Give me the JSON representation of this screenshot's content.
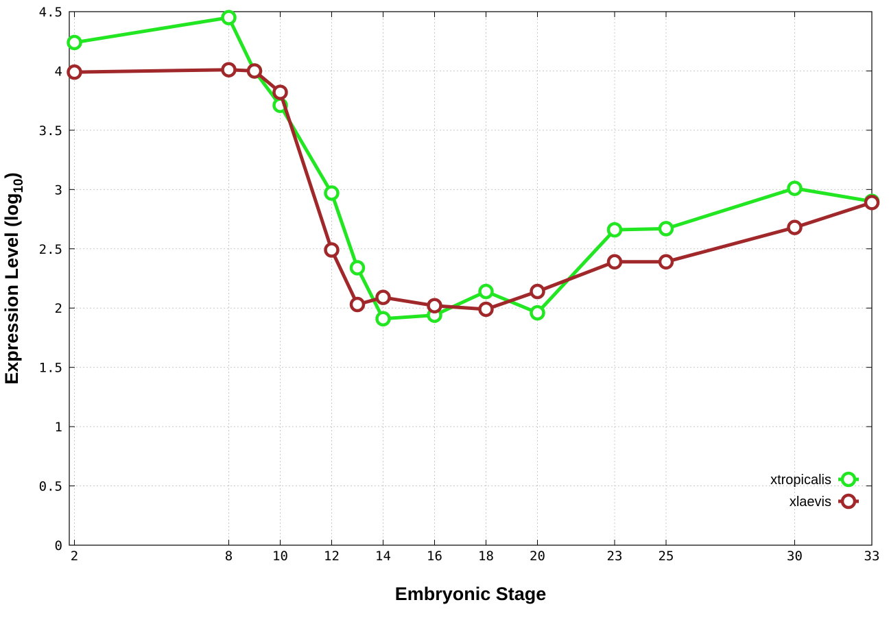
{
  "chart_data": {
    "type": "line",
    "title": "",
    "xlabel": "Embryonic Stage",
    "ylabel_main": "Expression Level (log",
    "ylabel_sub": "10",
    "ylabel_close": ")",
    "x": [
      2,
      8,
      9,
      10,
      12,
      13,
      14,
      16,
      18,
      20,
      23,
      25,
      30,
      33
    ],
    "x_tick_values": [
      2,
      8,
      10,
      12,
      14,
      16,
      18,
      20,
      23,
      25,
      30,
      33
    ],
    "x_tick_labels": [
      "2",
      "8",
      "10",
      "12",
      "14",
      "16",
      "18",
      "20",
      "23",
      "25",
      "30",
      "33"
    ],
    "xlim": [
      1.8,
      33
    ],
    "y_tick_values": [
      0,
      0.5,
      1,
      1.5,
      2,
      2.5,
      3,
      3.5,
      4,
      4.5
    ],
    "y_tick_labels": [
      "0",
      "0.5",
      "1",
      "1.5",
      "2",
      "2.5",
      "3",
      "3.5",
      "4",
      "4.5"
    ],
    "ylim": [
      0,
      4.5
    ],
    "grid": true,
    "legend_position": "bottom-right",
    "series": [
      {
        "name": "xtropicalis",
        "color": "#22e622",
        "values": [
          4.24,
          4.45,
          4.0,
          3.71,
          2.97,
          2.34,
          1.91,
          1.94,
          2.14,
          1.96,
          2.66,
          2.67,
          3.01,
          2.9
        ]
      },
      {
        "name": "xlaevis",
        "color": "#a0282a",
        "values": [
          3.99,
          4.01,
          4.0,
          3.82,
          2.49,
          2.03,
          2.09,
          2.02,
          1.99,
          2.14,
          2.39,
          2.39,
          2.68,
          2.89
        ]
      }
    ]
  }
}
